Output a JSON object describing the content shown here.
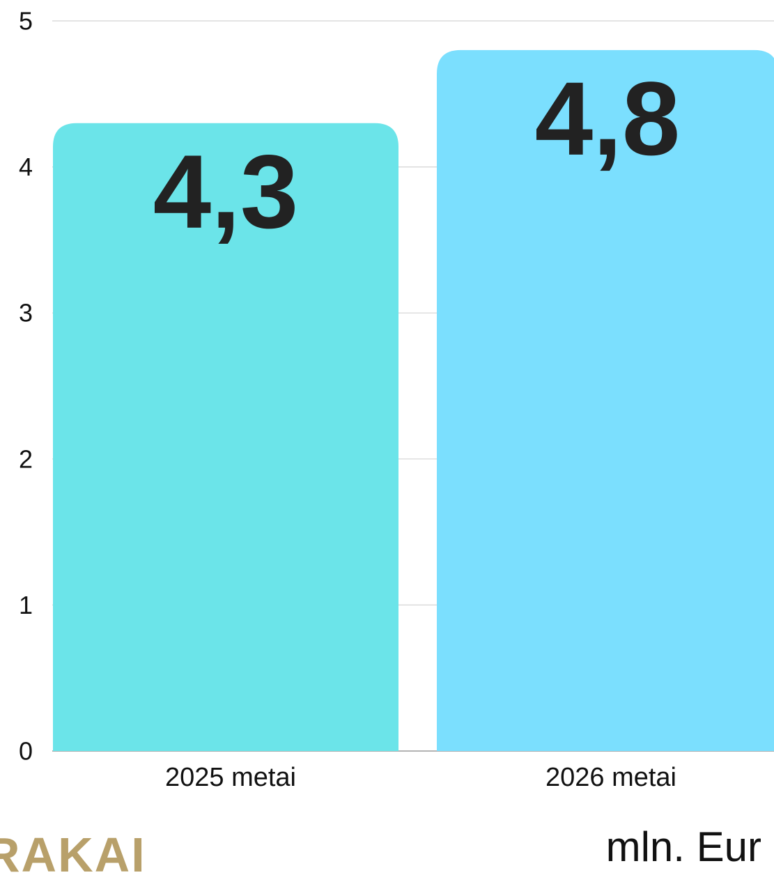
{
  "chart_data": {
    "type": "bar",
    "categories": [
      "2025 metai",
      "2026 metai"
    ],
    "values": [
      4.3,
      4.8
    ],
    "value_labels": [
      "4,3",
      "4,8"
    ],
    "bar_colors": [
      "#6be4e9",
      "#7bdffe"
    ],
    "ylim": [
      0,
      5
    ],
    "y_ticks": [
      0,
      1,
      2,
      3,
      4,
      5
    ],
    "grid": true,
    "grid_color": "#d4d4d4",
    "unit": "mln. Eur"
  },
  "logo": {
    "text": "RAKAI",
    "color": "#b8a06a"
  }
}
